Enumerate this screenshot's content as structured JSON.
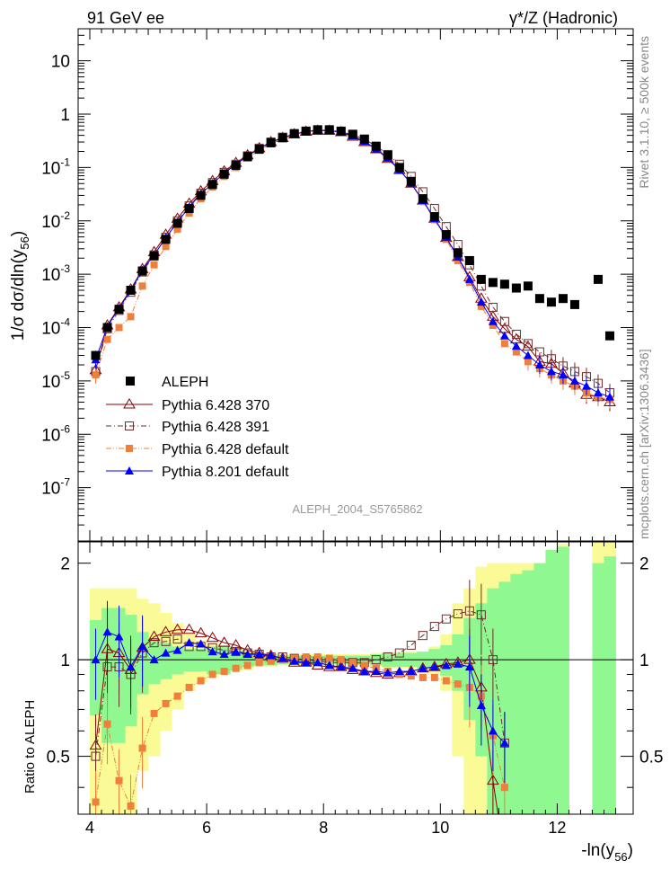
{
  "chart_data": {
    "type": "line",
    "header": {
      "left": "91 GeV ee",
      "right": "γ*/Z (Hadronic)"
    },
    "analysis_id": "ALEPH_2004_S5765862",
    "side_labels": {
      "rivet": "Rivet 3.1.10, ≥ 500k events",
      "mcplots": "mcplots.cern.ch [arXiv:1306.3436]"
    },
    "x_axis": {
      "label": "-ln(y",
      "label_sub": "56",
      "label_close": ")",
      "range": [
        3.8,
        13.3
      ],
      "ticks": [
        4,
        6,
        8,
        10,
        12
      ],
      "tick_labels": [
        "4",
        "6",
        "8",
        "10",
        "12"
      ]
    },
    "top_panel": {
      "ylabel": "1/σ  dσ/dln(y",
      "ylabel_sub": "56",
      "ylabel_close": ")",
      "scale": "log",
      "ylim_log10": [
        -8,
        1.6
      ],
      "ticks": [
        {
          "exp": -7,
          "label": "10",
          "sup": "-7"
        },
        {
          "exp": -6,
          "label": "10",
          "sup": "-6"
        },
        {
          "exp": -5,
          "label": "10",
          "sup": "-5"
        },
        {
          "exp": -4,
          "label": "10",
          "sup": "-4"
        },
        {
          "exp": -3,
          "label": "10",
          "sup": "-3"
        },
        {
          "exp": -2,
          "label": "10",
          "sup": "-2"
        },
        {
          "exp": -1,
          "label": "10",
          "sup": "-1"
        },
        {
          "exp": 0,
          "label": "1",
          "sup": ""
        },
        {
          "exp": 1,
          "label": "10",
          "sup": ""
        }
      ]
    },
    "ratio_panel": {
      "ylabel": "Ratio to ALEPH",
      "ylim": [
        0.33,
        2.33
      ],
      "ticks": [
        0.5,
        1,
        2
      ],
      "tick_labels": [
        "0.5",
        "1",
        "2"
      ]
    },
    "x": [
      4.1,
      4.3,
      4.5,
      4.7,
      4.9,
      5.1,
      5.3,
      5.5,
      5.7,
      5.9,
      6.1,
      6.3,
      6.5,
      6.7,
      6.9,
      7.1,
      7.3,
      7.5,
      7.7,
      7.9,
      8.1,
      8.3,
      8.5,
      8.7,
      8.9,
      9.1,
      9.3,
      9.5,
      9.7,
      9.9,
      10.1,
      10.3,
      10.5,
      10.7,
      10.9,
      11.1,
      11.3,
      11.5,
      11.7,
      11.9,
      12.1,
      12.3,
      12.5,
      12.7,
      12.9
    ],
    "data": {
      "name": "ALEPH",
      "values": [
        3e-05,
        0.0001,
        0.00022,
        0.0005,
        0.00115,
        0.0022,
        0.0045,
        0.009,
        0.017,
        0.03,
        0.048,
        0.075,
        0.11,
        0.16,
        0.22,
        0.29,
        0.36,
        0.43,
        0.48,
        0.51,
        0.51,
        0.48,
        0.42,
        0.34,
        0.25,
        0.17,
        0.1,
        0.055,
        0.026,
        0.012,
        0.0055,
        0.0025,
        0.0018,
        0.0008,
        0.0007,
        0.00065,
        0.00055,
        0.0006,
        0.00035,
        0.0003,
        0.00035,
        0.00027,
        0.0,
        0.0008,
        7e-05
      ]
    },
    "series": [
      {
        "name": "Pythia 6.428 370",
        "color": "#8b0000",
        "marker": "triangle-open",
        "line": "solid",
        "values": [
          1.6e-05,
          0.00011,
          0.00024,
          0.00052,
          0.00125,
          0.0026,
          0.0055,
          0.011,
          0.021,
          0.036,
          0.056,
          0.085,
          0.122,
          0.17,
          0.23,
          0.3,
          0.36,
          0.42,
          0.47,
          0.49,
          0.49,
          0.46,
          0.38,
          0.3,
          0.22,
          0.145,
          0.09,
          0.05,
          0.024,
          0.011,
          0.0048,
          0.0021,
          0.00088,
          0.00035,
          0.00016,
          9.5e-05,
          6e-05,
          4.4e-05,
          2.3e-05,
          2.1e-05,
          1.4e-05,
          9e-06,
          5.5e-06,
          5e-06,
          4e-06
        ],
        "ratio": [
          0.54,
          1.08,
          1.05,
          0.93,
          1.09,
          1.18,
          1.22,
          1.24,
          1.24,
          1.21,
          1.17,
          1.13,
          1.11,
          1.07,
          1.05,
          1.03,
          1.01,
          0.98,
          0.98,
          0.96,
          0.95,
          0.95,
          0.93,
          0.92,
          0.91,
          0.9,
          0.91,
          0.92,
          0.94,
          0.95,
          0.97,
          0.98,
          1.0,
          0.82,
          0.42,
          0.24,
          null,
          null,
          null,
          null,
          null,
          null,
          null,
          null,
          null
        ]
      },
      {
        "name": "Pythia 6.428 391",
        "color": "#6b2d2d",
        "marker": "square-open",
        "line": "dashdot",
        "values": [
          1.5e-05,
          9.5e-05,
          0.00021,
          0.00046,
          0.0011,
          0.0023,
          0.0049,
          0.01,
          0.019,
          0.033,
          0.052,
          0.081,
          0.115,
          0.165,
          0.23,
          0.3,
          0.37,
          0.43,
          0.48,
          0.5,
          0.5,
          0.47,
          0.41,
          0.34,
          0.25,
          0.175,
          0.115,
          0.068,
          0.035,
          0.017,
          0.0078,
          0.0036,
          0.0015,
          0.0006,
          0.00024,
          0.00013,
          7.5e-05,
          5e-05,
          3.5e-05,
          2.6e-05,
          1.9e-05,
          1.5e-05,
          1.2e-05,
          9e-06,
          6e-06
        ],
        "ratio": [
          0.5,
          0.95,
          0.95,
          0.9,
          1.05,
          1.13,
          1.14,
          1.16,
          1.1,
          1.1,
          1.09,
          1.07,
          1.06,
          1.05,
          1.04,
          1.02,
          1.02,
          1.01,
          1.0,
          0.99,
          0.98,
          0.98,
          0.98,
          0.98,
          1.0,
          1.02,
          1.05,
          1.11,
          1.19,
          1.27,
          1.34,
          1.39,
          1.42,
          1.38,
          1.0,
          0.55,
          null,
          null,
          null,
          null,
          null,
          null,
          null,
          null,
          null
        ]
      },
      {
        "name": "Pythia 6.428 default",
        "color": "#ef7f3a",
        "marker": "square-filled",
        "line": "dashdotdot",
        "values": [
          1.3e-05,
          6e-05,
          0.0001,
          0.00016,
          0.0006,
          0.0015,
          0.0033,
          0.007,
          0.014,
          0.026,
          0.043,
          0.068,
          0.1,
          0.15,
          0.21,
          0.28,
          0.35,
          0.42,
          0.47,
          0.5,
          0.5,
          0.47,
          0.4,
          0.31,
          0.23,
          0.15,
          0.09,
          0.05,
          0.023,
          0.0105,
          0.0045,
          0.0018,
          0.0007,
          0.00025,
          0.00011,
          5e-05,
          3.5e-05,
          2.3e-05,
          1.7e-05,
          1.3e-05,
          1e-05,
          8e-06,
          6e-06,
          5e-06,
          4.5e-06
        ],
        "ratio": [
          0.36,
          0.63,
          0.42,
          0.35,
          0.53,
          0.68,
          0.73,
          0.77,
          0.82,
          0.86,
          0.9,
          0.92,
          0.94,
          0.96,
          0.98,
          0.99,
          1.0,
          1.01,
          1.02,
          1.02,
          1.01,
          1.0,
          0.98,
          0.96,
          0.94,
          0.92,
          0.9,
          0.89,
          0.88,
          0.88,
          0.86,
          0.84,
          0.82,
          0.77,
          0.58,
          0.4,
          null,
          null,
          null,
          null,
          null,
          null,
          null,
          null,
          null
        ]
      },
      {
        "name": "Pythia 8.201 default",
        "color": "#0000ff",
        "marker": "triangle-filled",
        "line": "solid",
        "values": [
          2.5e-05,
          0.000105,
          0.00023,
          0.00049,
          0.0012,
          0.0023,
          0.0048,
          0.0095,
          0.018,
          0.032,
          0.05,
          0.078,
          0.114,
          0.165,
          0.225,
          0.3,
          0.36,
          0.42,
          0.47,
          0.5,
          0.49,
          0.46,
          0.39,
          0.31,
          0.22,
          0.15,
          0.09,
          0.05,
          0.024,
          0.011,
          0.0049,
          0.0021,
          0.0008,
          0.0003,
          0.00013,
          7e-05,
          4.5e-05,
          3e-05,
          2e-05,
          1.5e-05,
          1.3e-05,
          1e-05,
          8e-06,
          6e-06,
          5e-06
        ],
        "ratio": [
          1.0,
          1.22,
          1.18,
          0.95,
          1.1,
          1.0,
          1.05,
          1.07,
          1.13,
          1.12,
          1.06,
          1.04,
          1.06,
          1.04,
          1.04,
          1.03,
          1.01,
          0.99,
          0.98,
          0.98,
          0.96,
          0.95,
          0.94,
          0.92,
          0.92,
          0.91,
          0.92,
          0.92,
          0.94,
          0.95,
          0.96,
          0.97,
          0.95,
          0.72,
          0.6,
          0.55,
          null,
          null,
          null,
          null,
          null,
          null,
          null,
          null,
          null
        ]
      }
    ],
    "legend": {
      "placement": "lower-left of top panel",
      "entries": [
        "ALEPH",
        "Pythia 6.428 370",
        "Pythia 6.428 391",
        "Pythia 6.428 default",
        "Pythia 8.201 default"
      ]
    },
    "uncertainty_bands": {
      "inner_color": "#90f890",
      "outer_color": "#fafa96",
      "inner": [
        0.33,
        0.45,
        0.45,
        0.38,
        0.22,
        0.16,
        0.13,
        0.1,
        0.08,
        0.08,
        0.1,
        0.1,
        0.07,
        0.05,
        0.04,
        0.04,
        0.03,
        0.03,
        0.03,
        0.03,
        0.03,
        0.03,
        0.03,
        0.03,
        0.04,
        0.05,
        0.05,
        0.05,
        0.06,
        0.08,
        0.11,
        0.2,
        0.35,
        0.5,
        0.67,
        0.75,
        0.85,
        0.9,
        1.0,
        1.2,
        1.25,
        null,
        null,
        1.0,
        1.1
      ],
      "outer": [
        0.67,
        0.67,
        0.67,
        0.67,
        0.55,
        0.5,
        0.4,
        0.3,
        0.2,
        0.15,
        0.12,
        0.1,
        0.08,
        0.07,
        0.05,
        0.05,
        0.04,
        0.04,
        0.04,
        0.04,
        0.04,
        0.04,
        0.04,
        0.04,
        0.05,
        0.06,
        0.06,
        0.06,
        0.06,
        0.1,
        0.2,
        0.5,
        0.67,
        0.95,
        1.0,
        1.0,
        1.0,
        1.0,
        1.0,
        1.0,
        1.3,
        null,
        null,
        1.4,
        1.4
      ]
    }
  }
}
